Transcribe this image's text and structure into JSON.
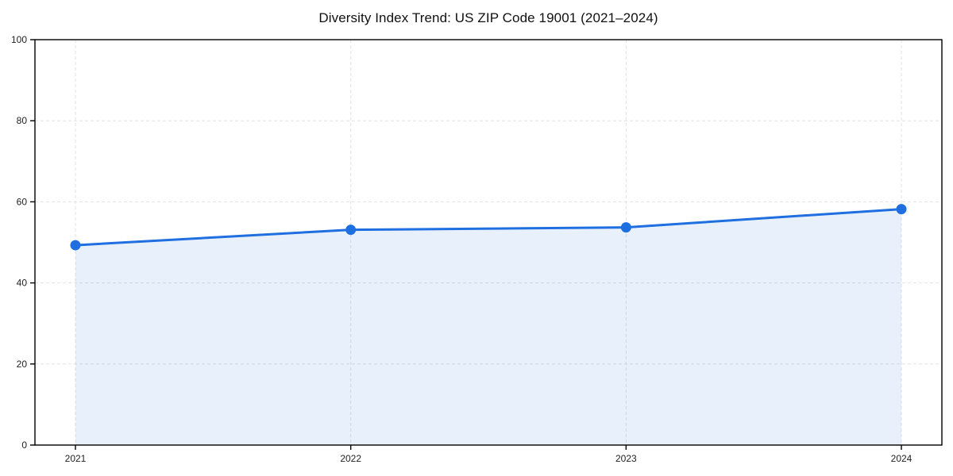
{
  "title": "Diversity Index Trend: US ZIP Code 19001 (2021–2024)",
  "chart_data": {
    "type": "line",
    "title": "Diversity Index Trend: US ZIP Code 19001 (2021–2024)",
    "x": [
      "2021",
      "2022",
      "2023",
      "2024"
    ],
    "series": [
      {
        "name": "Diversity Index",
        "values": [
          49.3,
          53.1,
          53.7,
          58.2
        ]
      }
    ],
    "xlabel": "",
    "ylabel": "",
    "ylim": [
      0,
      100
    ],
    "yticks": [
      0,
      20,
      40,
      60,
      80,
      100
    ],
    "xticks": [
      "2021",
      "2022",
      "2023",
      "2024"
    ],
    "grid": "dashed-both-axes",
    "legend_position": "none",
    "area_fill": true,
    "marker": "circle",
    "colors": {
      "line": "#1f6fe0",
      "marker": "#1f6fe0",
      "fill": "#1f6fe0",
      "fill_opacity": "0.10",
      "grid": "#e2e2e2",
      "axis": "#000000",
      "tick_text": "#222222",
      "title_text": "#111111",
      "background": "#ffffff"
    }
  }
}
